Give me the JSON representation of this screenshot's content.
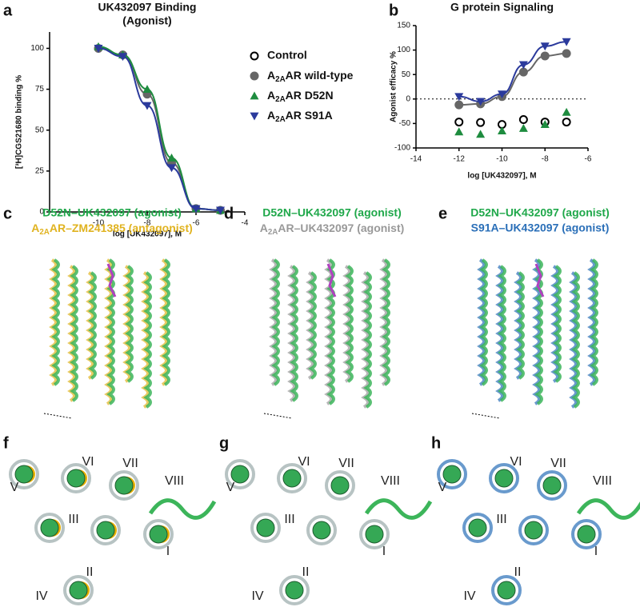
{
  "chart_data": [
    {
      "type": "line",
      "panel": "a",
      "title": "UK432097 Binding",
      "subtitle": "(Agonist)",
      "x_label": "log [UK432097], M",
      "y_label": "[³H]CGS21680 binding %",
      "x": [
        -10,
        -9,
        -8,
        -7,
        -6,
        -5
      ],
      "xlim": [
        -12,
        -4
      ],
      "xticks": [
        -10,
        -8,
        -6,
        -4
      ],
      "ylim": [
        0,
        110
      ],
      "yticks": [
        0,
        25,
        50,
        75,
        100
      ],
      "series": [
        {
          "color": "#666666",
          "marker": "circle",
          "values": [
            100,
            96,
            72,
            30,
            2,
            1
          ]
        },
        {
          "color": "#1e8c3f",
          "marker": "triangle-up",
          "values": [
            101,
            96,
            75,
            33,
            2,
            1
          ]
        },
        {
          "color": "#2b3a9c",
          "marker": "triangle-down",
          "values": [
            100,
            95,
            65,
            27,
            2,
            1
          ]
        }
      ]
    },
    {
      "type": "line",
      "panel": "b",
      "title": "G protein Signaling",
      "x_label": "log [UK432097], M",
      "y_label": "Agonist efficacy %",
      "x": [
        -12,
        -11,
        -10,
        -9,
        -8,
        -7
      ],
      "xlim": [
        -14,
        -6
      ],
      "xticks": [
        -14,
        -12,
        -10,
        -8,
        -6
      ],
      "ylim": [
        -100,
        150
      ],
      "yticks": [
        -100,
        -50,
        0,
        50,
        100,
        150
      ],
      "reference_line": 0,
      "series": [
        {
          "name": "Control",
          "color": "#000000",
          "marker": "open-circle",
          "connect": false,
          "values": [
            -47,
            -48,
            -52,
            -42,
            -47,
            -47
          ]
        },
        {
          "name": "A2AAR wild-type",
          "color": "#666666",
          "marker": "circle",
          "connect": true,
          "values": [
            -12,
            -10,
            5,
            55,
            88,
            93
          ]
        },
        {
          "name": "A2AAR D52N",
          "color": "#1e8c3f",
          "marker": "triangle-up",
          "connect": false,
          "values": [
            -67,
            -72,
            -65,
            -60,
            -52,
            -27
          ]
        },
        {
          "name": "A2AAR S91A",
          "color": "#2b3a9c",
          "marker": "triangle-down",
          "connect": true,
          "values": [
            5,
            -5,
            10,
            70,
            108,
            117
          ]
        }
      ]
    }
  ],
  "structure_panels": [
    {
      "label": "c",
      "captions": [
        {
          "text": "D52N–UK432097 (agonist)",
          "color": "#1fa84a"
        },
        {
          "text": "A2AAR–ZM241385 (antagonist)",
          "color": "#e0b320"
        }
      ]
    },
    {
      "label": "d",
      "captions": [
        {
          "text": "D52N–UK432097 (agonist)",
          "color": "#1fa84a"
        },
        {
          "text": "A2AAR–UK432097 (agonist)",
          "color": "#999999"
        }
      ]
    },
    {
      "label": "e",
      "captions": [
        {
          "text": "D52N–UK432097 (agonist)",
          "color": "#1fa84a"
        },
        {
          "text": "S91A–UK432097 (agonist)",
          "color": "#2a6fb8"
        }
      ]
    }
  ],
  "helix_panels": [
    {
      "label": "f",
      "helices": [
        "V",
        "VI",
        "VII",
        "VIII",
        "III",
        "II",
        "I",
        "IV"
      ]
    },
    {
      "label": "g",
      "helices": [
        "V",
        "VI",
        "VII",
        "VIII",
        "III",
        "II",
        "I",
        "IV"
      ]
    },
    {
      "label": "h",
      "helices": [
        "V",
        "VI",
        "VII",
        "VIII",
        "III",
        "II",
        "I",
        "IV"
      ]
    }
  ]
}
